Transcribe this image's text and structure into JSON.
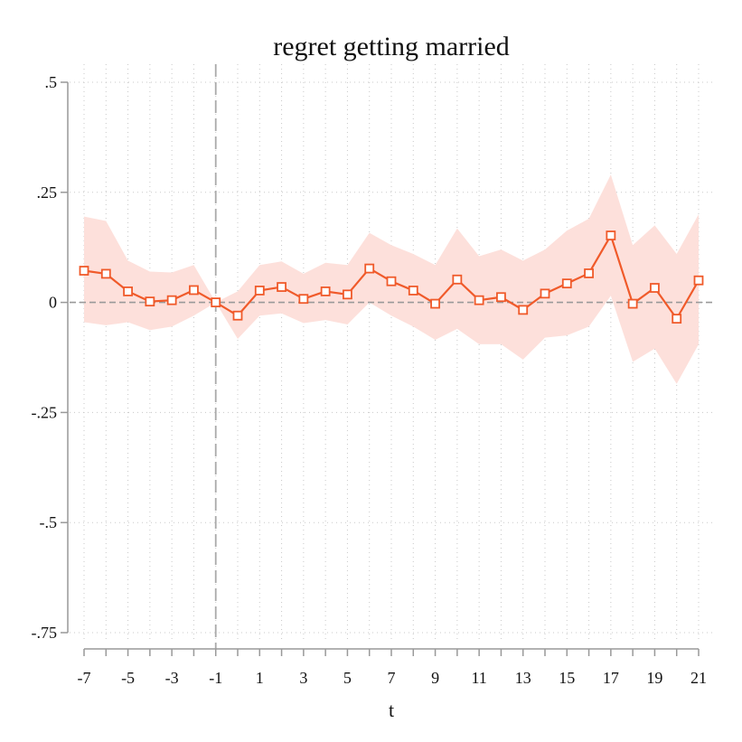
{
  "chart_data": {
    "type": "line",
    "title": "regret getting married",
    "xlabel": "t",
    "ylabel": "",
    "xlim": [
      -7,
      21
    ],
    "ylim": [
      -0.75,
      0.5
    ],
    "x_ticks": [
      -7,
      -5,
      -3,
      -1,
      1,
      3,
      5,
      7,
      9,
      11,
      13,
      15,
      17,
      19,
      21
    ],
    "x_tick_labels": [
      "-7",
      "-5",
      "-3",
      "-1",
      "1",
      "3",
      "5",
      "7",
      "9",
      "11",
      "13",
      "15",
      "17",
      "19",
      "21"
    ],
    "y_ticks": [
      0.5,
      0.25,
      0,
      -0.25,
      -0.5,
      -0.75
    ],
    "y_tick_labels": [
      ".5",
      ".25",
      "0",
      "-.25",
      "-.5",
      "-.75"
    ],
    "reference_line_x": -1,
    "reference_line_y": 0,
    "grid": "dotted",
    "colors": {
      "line": "#f05a2a",
      "ci_band": "#fde0db",
      "reference": "#999999",
      "axis": "#999999"
    },
    "series": [
      {
        "x": [
          -7,
          -6,
          -5,
          -4,
          -3,
          -2,
          -1,
          0,
          1,
          2,
          3,
          4,
          5,
          6,
          7,
          8,
          9,
          10,
          11,
          12,
          13,
          14,
          15,
          16,
          17,
          18,
          19,
          20,
          21
        ],
        "values": [
          0.072,
          0.065,
          0.025,
          0.002,
          0.005,
          0.028,
          0.0,
          -0.03,
          0.027,
          0.035,
          0.008,
          0.025,
          0.018,
          0.077,
          0.048,
          0.027,
          -0.003,
          0.052,
          0.005,
          0.012,
          -0.017,
          0.02,
          0.043,
          0.066,
          0.152,
          -0.003,
          0.033,
          -0.037,
          0.05
        ],
        "ci_lower": [
          -0.045,
          -0.052,
          -0.045,
          -0.063,
          -0.055,
          -0.03,
          0.0,
          -0.083,
          -0.03,
          -0.025,
          -0.047,
          -0.04,
          -0.05,
          0.0,
          -0.03,
          -0.055,
          -0.085,
          -0.06,
          -0.095,
          -0.095,
          -0.13,
          -0.08,
          -0.075,
          -0.055,
          0.015,
          -0.135,
          -0.105,
          -0.185,
          -0.095
        ],
        "ci_upper": [
          0.195,
          0.185,
          0.095,
          0.07,
          0.068,
          0.085,
          0.0,
          0.025,
          0.085,
          0.093,
          0.065,
          0.09,
          0.085,
          0.158,
          0.13,
          0.11,
          0.085,
          0.168,
          0.105,
          0.12,
          0.095,
          0.12,
          0.163,
          0.19,
          0.29,
          0.13,
          0.175,
          0.11,
          0.2
        ]
      }
    ]
  }
}
